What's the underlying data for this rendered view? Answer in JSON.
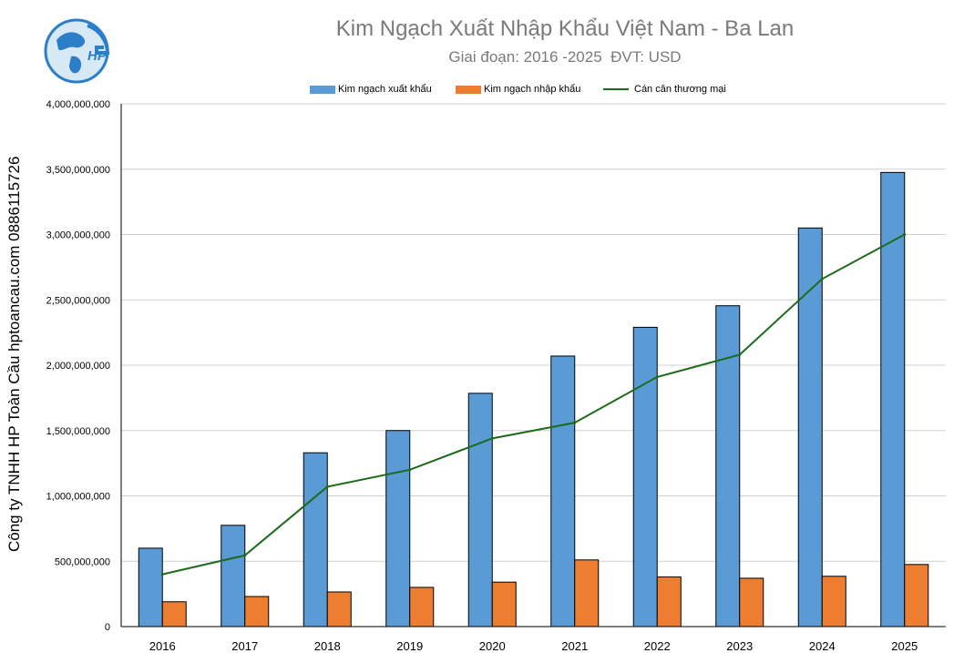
{
  "logo": {
    "text": "HP"
  },
  "side_label": "Công ty TNHH HP Toàn Cầu hptoancau.com 0886115726",
  "colors": {
    "export": "#5b9bd5",
    "import": "#ed7d31",
    "balance": "#1b6b1b",
    "grid": "#d0d0d0",
    "title": "#7a7a7a"
  },
  "chart_data": {
    "type": "bar",
    "title": "Kim Ngạch Xuất Nhập Khẩu Việt Nam - Ba Lan",
    "subtitle": "Giai đoạn: 2016 -2025  ĐVT: USD",
    "categories": [
      "2016",
      "2017",
      "2018",
      "2019",
      "2020",
      "2021",
      "2022",
      "2023",
      "2024",
      "2025"
    ],
    "series": [
      {
        "name": "Kim ngạch xuất khẩu",
        "type": "bar",
        "values": [
          600000000,
          775000000,
          1330000000,
          1500000000,
          1785000000,
          2070000000,
          2290000000,
          2455000000,
          3050000000,
          3475000000
        ]
      },
      {
        "name": "Kim ngạch nhập khẩu",
        "type": "bar",
        "values": [
          190000000,
          230000000,
          265000000,
          300000000,
          340000000,
          510000000,
          380000000,
          370000000,
          385000000,
          475000000
        ]
      },
      {
        "name": "Cán cân thương mại",
        "type": "line",
        "values": [
          400000000,
          545000000,
          1070000000,
          1200000000,
          1440000000,
          1560000000,
          1910000000,
          2080000000,
          2660000000,
          3000000000
        ]
      }
    ],
    "ylim": [
      0,
      4000000000
    ],
    "yticks": [
      0,
      500000000,
      1000000000,
      1500000000,
      2000000000,
      2500000000,
      3000000000,
      3500000000,
      4000000000
    ],
    "ytick_labels": [
      "0",
      "500,000,000",
      "1,000,000,000",
      "1,500,000,000",
      "2,000,000,000",
      "2,500,000,000",
      "3,000,000,000",
      "3,500,000,000",
      "4,000,000,000"
    ],
    "grid": true,
    "legend_position": "top"
  }
}
